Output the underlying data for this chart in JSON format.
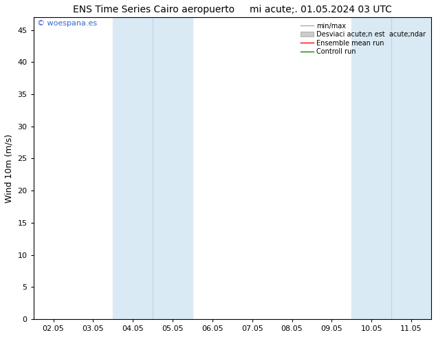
{
  "title_left": "ENS Time Series Cairo aeropuerto",
  "title_right": "mi acute;. 01.05.2024 03 UTC",
  "ylabel": "Wind 10m (m/s)",
  "ylim": [
    0,
    47
  ],
  "yticks": [
    0,
    5,
    10,
    15,
    20,
    25,
    30,
    35,
    40,
    45
  ],
  "xtick_labels": [
    "02.05",
    "03.05",
    "04.05",
    "05.05",
    "06.05",
    "07.05",
    "08.05",
    "09.05",
    "10.05",
    "11.05"
  ],
  "shaded_bands": [
    {
      "xstart": 2,
      "xend": 4,
      "color": "#daeaf5",
      "alpha": 1.0
    },
    {
      "xstart": 8,
      "xend": 10,
      "color": "#daeaf5",
      "alpha": 1.0
    }
  ],
  "band_dividers": [
    3,
    9
  ],
  "background_color": "#ffffff",
  "plot_bg_color": "#ffffff",
  "legend_labels": [
    "min/max",
    "Desviaci acute;n est  acute;ndar",
    "Ensemble mean run",
    "Controll run"
  ],
  "legend_colors": [
    "#aaaaaa",
    "#cccccc",
    "#ff0000",
    "#008800"
  ],
  "watermark": "© woespana.es",
  "watermark_color": "#3366cc",
  "border_color": "#000000",
  "title_fontsize": 10,
  "axis_label_fontsize": 9,
  "tick_fontsize": 8,
  "figsize": [
    6.34,
    4.9
  ],
  "dpi": 100
}
